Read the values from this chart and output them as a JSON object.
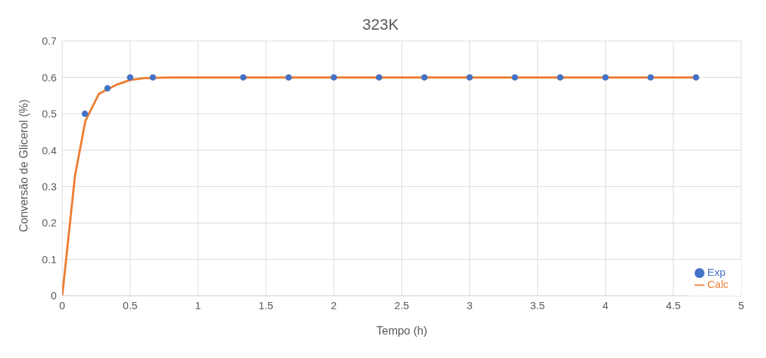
{
  "chart_data": {
    "type": "scatter",
    "title": "323K",
    "xlabel": "Tempo (h)",
    "ylabel": "Conversão de Glicerol (%)",
    "xlim": [
      0,
      5
    ],
    "xticks": [
      0,
      0.5,
      1,
      1.5,
      2,
      2.5,
      3,
      3.5,
      4,
      4.5,
      5
    ],
    "ylim": [
      0,
      0.7
    ],
    "yticks": [
      0,
      0.1,
      0.2,
      0.3,
      0.4,
      0.5,
      0.6,
      0.7
    ],
    "grid": true,
    "legend": "bottom right",
    "series": [
      {
        "name": "Exp",
        "marker": "circle",
        "color": "#4472c4",
        "x": [
          0.167,
          0.333,
          0.5,
          0.667,
          1.333,
          1.667,
          2,
          2.333,
          2.667,
          3,
          3.333,
          3.667,
          4,
          4.333,
          4.667
        ],
        "values": [
          0.5,
          0.57,
          0.6,
          0.6,
          0.6,
          0.6,
          0.6,
          0.6,
          0.6,
          0.6,
          0.6,
          0.6,
          0.6,
          0.6,
          0.6
        ]
      },
      {
        "name": "Calc",
        "type": "line",
        "marker": "none",
        "line_style": "solid",
        "color": "#ed7d31",
        "x": [
          0,
          0.094,
          0.17,
          0.27,
          0.4,
          0.5,
          0.6,
          0.8,
          1.5,
          2.5,
          3.5,
          4.667
        ],
        "values": [
          0,
          0.33,
          0.48,
          0.555,
          0.58,
          0.593,
          0.598,
          0.6,
          0.6,
          0.6,
          0.6,
          0.6
        ]
      }
    ]
  }
}
